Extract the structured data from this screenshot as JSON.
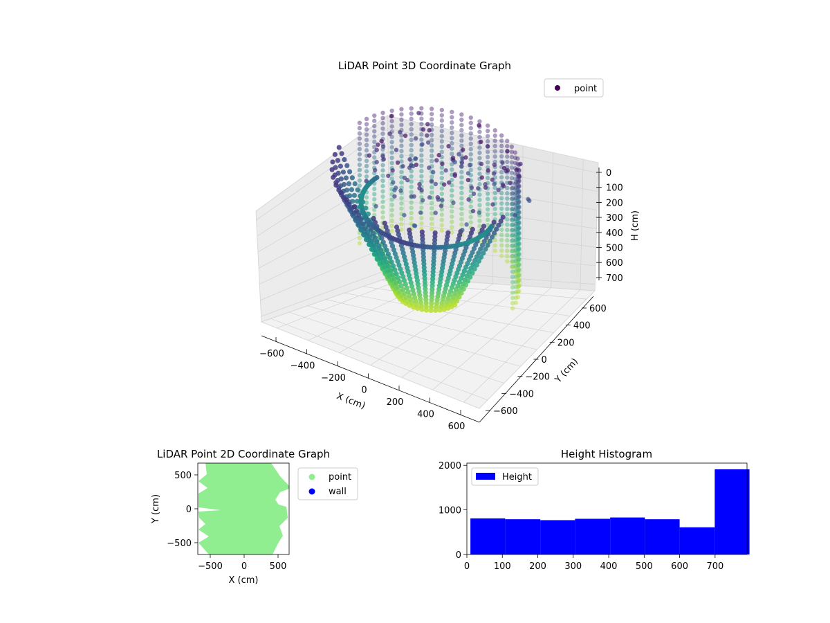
{
  "chart_data": [
    {
      "type": "scatter",
      "projection": "3d",
      "title": "LiDAR Point 3D Coordinate Graph",
      "xlabel": "X (cm)",
      "ylabel": "Y (cm)",
      "zlabel": "H (cm)",
      "xlim": [
        -700,
        700
      ],
      "ylim": [
        -700,
        700
      ],
      "zlim": [
        0,
        790
      ],
      "zaxis_inverted": true,
      "xticks": [
        "−600",
        "−400",
        "−200",
        "0",
        "200",
        "400",
        "600"
      ],
      "yticks": [
        "−600",
        "−400",
        "−200",
        "0",
        "200",
        "400",
        "600"
      ],
      "zticks": [
        "0",
        "100",
        "200",
        "300",
        "400",
        "500",
        "600",
        "700"
      ],
      "colormap": "viridis",
      "legend": {
        "entries": [
          {
            "label": "point",
            "color": "#440154"
          }
        ],
        "placement": "upper-right"
      },
      "grid": true,
      "series": [
        {
          "name": "point",
          "description": "dense point cloud of rotating LiDAR scan lines"
        }
      ]
    },
    {
      "type": "scatter",
      "title": "LiDAR Point 2D Coordinate Graph",
      "xlabel": "X (cm)",
      "ylabel": "Y (cm)",
      "xlim": [
        -680,
        680
      ],
      "ylim": [
        -680,
        680
      ],
      "xticks": [
        "−500",
        "0",
        "500"
      ],
      "yticks": [
        "500",
        "0",
        "−500"
      ],
      "legend": {
        "entries": [
          {
            "label": "point",
            "color": "#90ee90"
          },
          {
            "label": "wall",
            "color": "#0000ff"
          }
        ],
        "placement": "outside-right"
      },
      "series": [
        {
          "name": "point",
          "color": "#90ee90"
        },
        {
          "name": "wall",
          "color": "#0000ff"
        }
      ]
    },
    {
      "type": "bar",
      "subtype": "histogram",
      "title": "Height Histogram",
      "xlim": [
        0,
        790
      ],
      "ylim": [
        0,
        2050
      ],
      "xticks": [
        "0",
        "100",
        "200",
        "300",
        "400",
        "500",
        "600",
        "700"
      ],
      "yticks": [
        "0",
        "1000",
        "2000"
      ],
      "bin_edges": [
        10,
        108,
        207,
        305,
        404,
        502,
        600,
        699,
        797
      ],
      "values": [
        810,
        790,
        770,
        800,
        830,
        790,
        610,
        1910
      ],
      "color": "#0000ff",
      "legend": {
        "entries": [
          {
            "label": "Height",
            "color": "#0000ff"
          }
        ],
        "placement": "upper-left"
      }
    }
  ]
}
